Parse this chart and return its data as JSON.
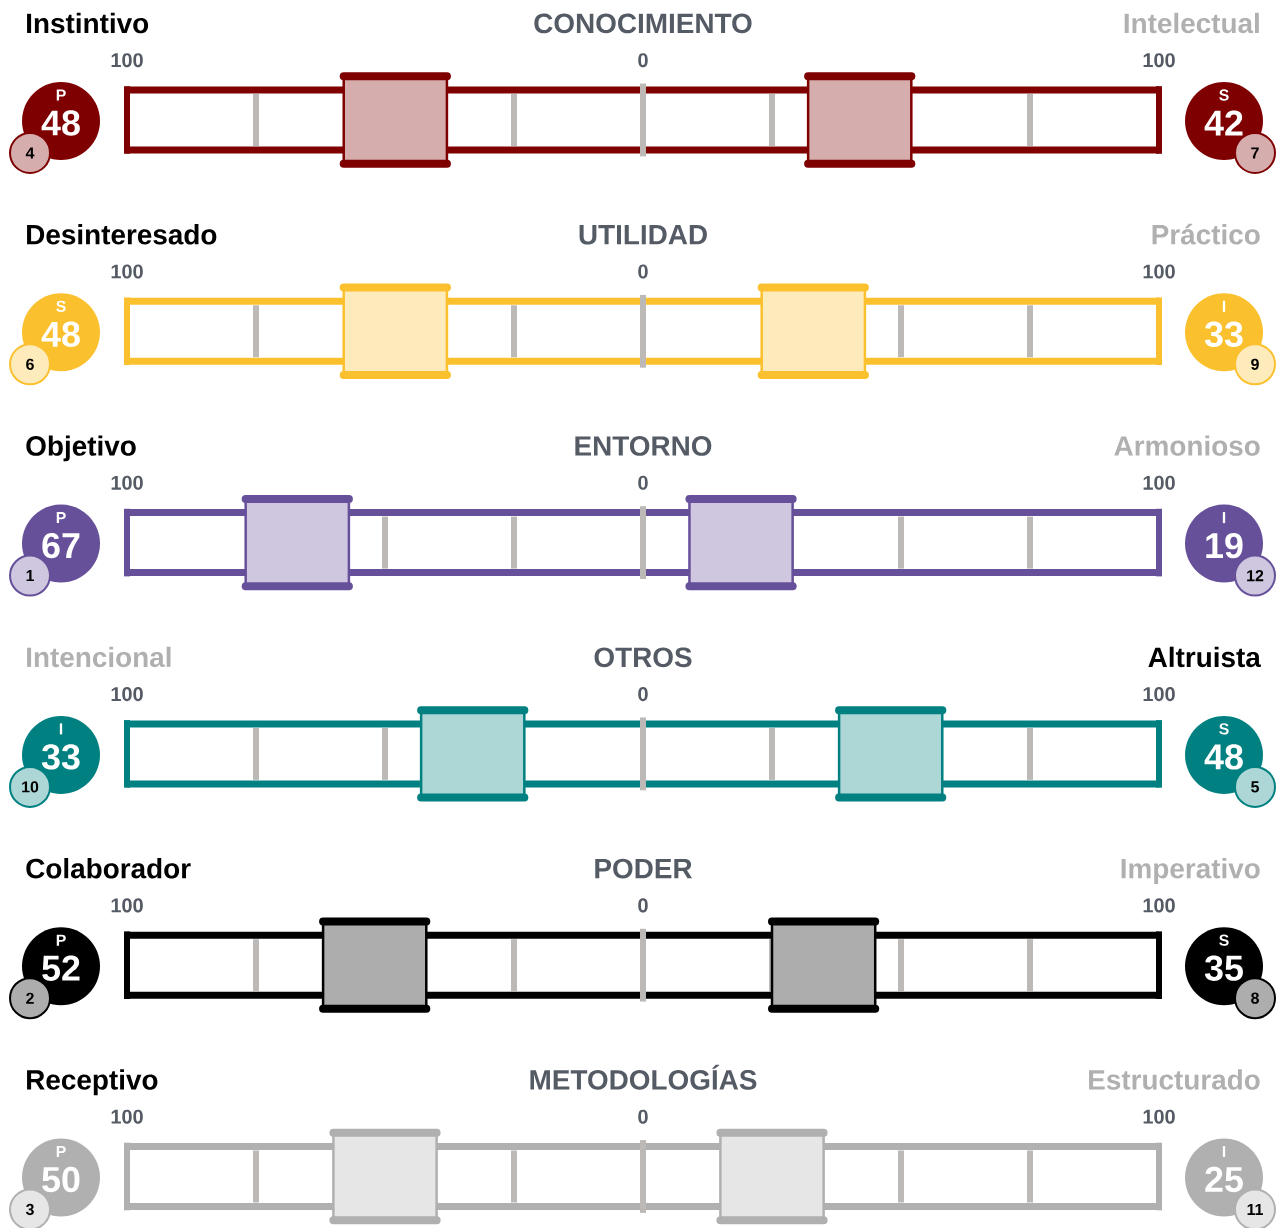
{
  "chart_data": [
    {
      "type": "other",
      "title": "CONOCIMIENTO",
      "categories": [
        "Instintivo",
        "Intelectual"
      ],
      "values": [
        48,
        42
      ],
      "data_labels": true,
      "annotations": [
        "100",
        "0",
        "100",
        "P",
        "4",
        "S",
        "7"
      ],
      "color": "#7f0000"
    },
    {
      "type": "other",
      "title": "UTILIDAD",
      "categories": [
        "Desinteresado",
        "Práctico"
      ],
      "values": [
        48,
        33
      ],
      "data_labels": true,
      "annotations": [
        "100",
        "0",
        "100",
        "S",
        "6",
        "I",
        "9"
      ],
      "color": "#fbc02d"
    },
    {
      "type": "other",
      "title": "ENTORNO",
      "categories": [
        "Objetivo",
        "Armonioso"
      ],
      "values": [
        67,
        19
      ],
      "data_labels": true,
      "annotations": [
        "100",
        "0",
        "100",
        "P",
        "1",
        "I",
        "12"
      ],
      "color": "#67509a"
    },
    {
      "type": "other",
      "title": "OTROS",
      "categories": [
        "Intencional",
        "Altruista"
      ],
      "values": [
        33,
        48
      ],
      "data_labels": true,
      "annotations": [
        "100",
        "0",
        "100",
        "I",
        "10",
        "S",
        "5"
      ],
      "color": "#008080"
    },
    {
      "type": "other",
      "title": "PODER",
      "categories": [
        "Colaborador",
        "Imperativo"
      ],
      "values": [
        52,
        35
      ],
      "data_labels": true,
      "annotations": [
        "100",
        "0",
        "100",
        "P",
        "2",
        "S",
        "8"
      ],
      "color": "#000000"
    },
    {
      "type": "other",
      "title": "METODOLOGÍAS",
      "categories": [
        "Receptivo",
        "Estructurado"
      ],
      "values": [
        50,
        25
      ],
      "data_labels": true,
      "annotations": [
        "100",
        "0",
        "100",
        "P",
        "3",
        "I",
        "11"
      ],
      "color": "#b0b0b0"
    }
  ]
}
